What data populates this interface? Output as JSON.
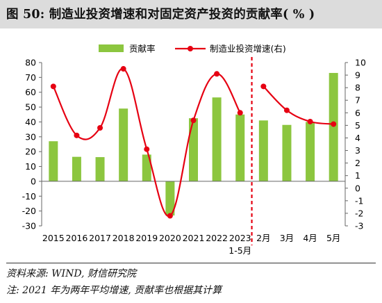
{
  "figure": {
    "title": "图 50: 制造业投资增速和对固定资产投资的贡献率( % )",
    "source": "资料来源: WIND, 财信研究院",
    "note": "注: 2021 年为两年平均增速, 贡献率也根据其计算"
  },
  "chart_data": {
    "type": "bar+line",
    "categories": [
      "2015",
      "2016",
      "2017",
      "2018",
      "2019",
      "2020",
      "2021",
      "2022",
      "2023\n1-5月",
      "2月",
      "3月",
      "4月",
      "5月"
    ],
    "series": [
      {
        "name": "贡献率",
        "type": "bar",
        "axis": "left",
        "color": "#8cc63f",
        "values": [
          27,
          16.5,
          16.3,
          49,
          18,
          -23,
          42.5,
          56.5,
          45,
          41,
          38,
          40,
          73
        ]
      },
      {
        "name": "制造业投资增速(右)",
        "type": "line",
        "axis": "right",
        "color": "#e60012",
        "values": [
          8.1,
          4.2,
          4.8,
          9.5,
          3.1,
          -2.2,
          5.4,
          9.1,
          6.0,
          8.1,
          6.2,
          5.3,
          5.1
        ]
      }
    ],
    "y_left": {
      "range": [
        -30,
        80
      ],
      "ticks": [
        -30,
        -20,
        -10,
        0,
        10,
        20,
        30,
        40,
        50,
        60,
        70,
        80
      ]
    },
    "y_right": {
      "range": [
        -3,
        10
      ],
      "ticks": [
        -3,
        -2,
        -1,
        0,
        1,
        2,
        3,
        4,
        5,
        6,
        7,
        8,
        9,
        10
      ]
    },
    "divider_after_category": "2023\n1-5月",
    "legend_position": "top"
  }
}
